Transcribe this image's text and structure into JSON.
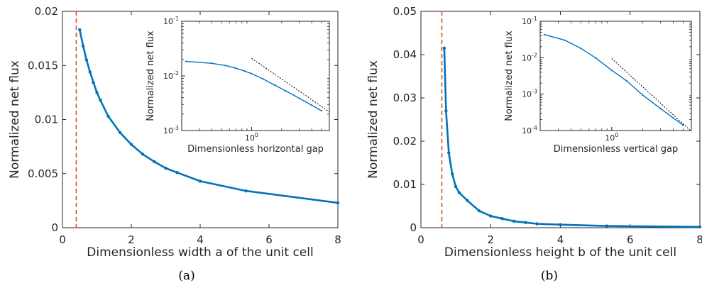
{
  "figure": {
    "caption_a": "(a)",
    "caption_b": "(b)"
  },
  "colors": {
    "series": "#0072bd",
    "reference_line": "#d95319",
    "slope_line": "#000000",
    "axes": "#262626"
  },
  "chart_data": [
    {
      "id": "a",
      "type": "line",
      "xlabel": "Dimensionless width a of the unit cell",
      "ylabel": "Normalized net flux",
      "xlim": [
        0,
        8
      ],
      "ylim": [
        0,
        0.02
      ],
      "xticks": [
        0,
        2,
        4,
        6,
        8
      ],
      "xtick_labels": [
        "0",
        "2",
        "4",
        "6",
        "8"
      ],
      "yticks": [
        0,
        0.005,
        0.01,
        0.015,
        0.02
      ],
      "ytick_labels": [
        "0",
        "0.005",
        "0.01",
        "0.015",
        "0.02"
      ],
      "grid": false,
      "reference_line": {
        "x": 0.4,
        "style": "dashed",
        "color": "#d95319"
      },
      "series": [
        {
          "x": [
            0.5,
            0.6,
            0.7,
            0.8,
            0.9,
            1.0,
            1.1,
            1.33,
            1.67,
            2.0,
            2.33,
            2.67,
            3.0,
            3.33,
            4.0,
            5.33,
            8.0
          ],
          "values": [
            0.0183,
            0.0168,
            0.0155,
            0.0144,
            0.0134,
            0.0125,
            0.0118,
            0.0103,
            0.0088,
            0.0077,
            0.0068,
            0.0061,
            0.0055,
            0.0051,
            0.0043,
            0.0034,
            0.0023
          ]
        }
      ],
      "inset": {
        "type": "line",
        "xlabel": "Dimensionless horizontal gap",
        "ylabel": "Normalized net flux",
        "xscale": "log",
        "yscale": "log",
        "xlim": [
          0.2,
          6
        ],
        "ylim": [
          0.001,
          0.1
        ],
        "xticks": [
          1
        ],
        "xtick_labels": [
          "10^0"
        ],
        "yticks": [
          0.001,
          0.01,
          0.1
        ],
        "ytick_labels": [
          "10^-3",
          "10^-2",
          "10^-1"
        ],
        "series": [
          {
            "x": [
              0.22,
              0.4,
              0.55,
              0.7,
              0.85,
              1.0,
              1.3,
              1.7,
              2.2,
              3.0,
              4.0,
              5.0
            ],
            "values": [
              0.0185,
              0.017,
              0.0155,
              0.0138,
              0.0123,
              0.011,
              0.0088,
              0.0068,
              0.0053,
              0.0039,
              0.0029,
              0.0023
            ]
          }
        ],
        "slope_line": {
          "x": [
            1.0,
            6.0
          ],
          "values": [
            0.021,
            0.0022
          ],
          "style": "dotted"
        }
      }
    },
    {
      "id": "b",
      "type": "line",
      "xlabel": "Dimensionless height b of the unit cell",
      "ylabel": "Normalized net flux",
      "xlim": [
        0,
        8
      ],
      "ylim": [
        0,
        0.05
      ],
      "xticks": [
        0,
        2,
        4,
        6,
        8
      ],
      "xtick_labels": [
        "0",
        "2",
        "4",
        "6",
        "8"
      ],
      "yticks": [
        0,
        0.01,
        0.02,
        0.03,
        0.04,
        0.05
      ],
      "ytick_labels": [
        "0",
        "0.01",
        "0.02",
        "0.03",
        "0.04",
        "0.05"
      ],
      "grid": false,
      "reference_line": {
        "x": 0.6,
        "style": "dashed",
        "color": "#d95319"
      },
      "series": [
        {
          "x": [
            0.67,
            0.72,
            0.8,
            0.9,
            1.0,
            1.1,
            1.33,
            1.67,
            2.0,
            2.33,
            2.67,
            3.0,
            3.33,
            4.0,
            5.33,
            8.0
          ],
          "values": [
            0.0415,
            0.027,
            0.0173,
            0.0124,
            0.0095,
            0.0081,
            0.0063,
            0.0039,
            0.0027,
            0.0021,
            0.0015,
            0.0012,
            0.0009,
            0.0007,
            0.0004,
            0.0002
          ]
        }
      ],
      "inset": {
        "type": "line",
        "xlabel": "Dimensionless vertical gap",
        "ylabel": "Normalized net flux",
        "xscale": "log",
        "yscale": "log",
        "xlim": [
          0.2,
          6
        ],
        "ylim": [
          0.0001,
          0.1
        ],
        "xticks": [
          1
        ],
        "xtick_labels": [
          "10^0"
        ],
        "yticks": [
          0.0001,
          0.001,
          0.01,
          0.1
        ],
        "ytick_labels": [
          "10^-4",
          "10^-3",
          "10^-2",
          "10^-1"
        ],
        "series": [
          {
            "x": [
              0.22,
              0.35,
              0.5,
              0.7,
              1.0,
              1.4,
              2.0,
              3.0,
              4.0,
              5.0
            ],
            "values": [
              0.043,
              0.03,
              0.018,
              0.0098,
              0.0045,
              0.0023,
              0.00095,
              0.0004,
              0.00022,
              0.00014
            ]
          }
        ],
        "slope_line": {
          "x": [
            1.0,
            6.0
          ],
          "values": [
            0.0095,
            9.5e-05
          ],
          "style": "dotted"
        }
      }
    }
  ]
}
